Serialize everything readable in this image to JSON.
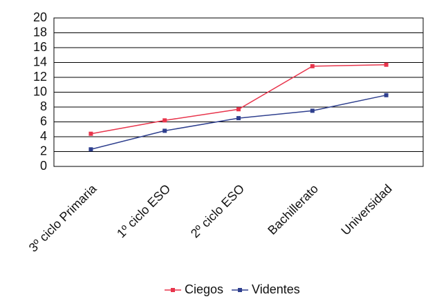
{
  "chart_data": {
    "type": "line",
    "categories": [
      "3º ciclo Primaria",
      "1º ciclo ESO",
      "2º ciclo ESO",
      "Bachillerato",
      "Universidad"
    ],
    "series": [
      {
        "name": "Ciegos",
        "color": "#e8354c",
        "values": [
          4.4,
          6.2,
          7.7,
          13.5,
          13.7
        ]
      },
      {
        "name": "Videntes",
        "color": "#2e3f8e",
        "values": [
          2.3,
          4.8,
          6.5,
          7.5,
          9.6
        ]
      }
    ],
    "ylim": [
      0,
      20
    ],
    "yticks": [
      0,
      2,
      4,
      6,
      8,
      10,
      12,
      14,
      16,
      18,
      20
    ],
    "grid": true,
    "legend": "bottom"
  }
}
